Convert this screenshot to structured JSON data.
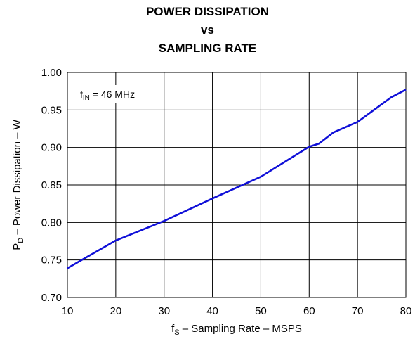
{
  "chart_data": {
    "type": "line",
    "title_lines": [
      "POWER DISSIPATION",
      "vs",
      "SAMPLING RATE"
    ],
    "xlabel": {
      "main": "f",
      "sub": "S",
      "rest": " – Sampling Rate – MSPS"
    },
    "ylabel": {
      "main": "P",
      "sub": "D",
      "rest": " – Power Dissipation – W"
    },
    "xlim": [
      10,
      80
    ],
    "ylim": [
      0.7,
      1.0
    ],
    "xticks": [
      "10",
      "20",
      "30",
      "40",
      "50",
      "60",
      "70",
      "80"
    ],
    "yticks": [
      "0.70",
      "0.75",
      "0.80",
      "0.85",
      "0.90",
      "0.95",
      "1.00"
    ],
    "grid": true,
    "annotation": {
      "main": "f",
      "sub": "IN",
      "rest": " = 46 MHz"
    },
    "series": [
      {
        "color": "#1010d8",
        "x": [
          10,
          20,
          30,
          40,
          50,
          60,
          62,
          65,
          70,
          77,
          80
        ],
        "y": [
          0.739,
          0.776,
          0.802,
          0.832,
          0.861,
          0.901,
          0.905,
          0.92,
          0.934,
          0.967,
          0.977
        ]
      }
    ]
  }
}
